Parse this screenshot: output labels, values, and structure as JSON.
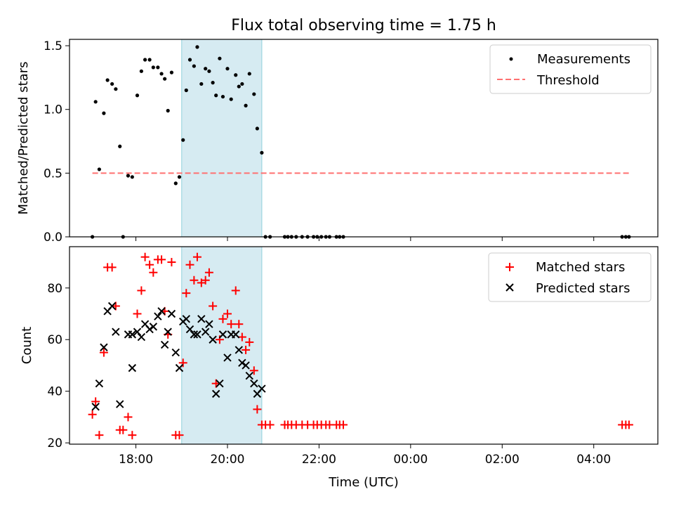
{
  "title": "Flux total observing time = 1.75 h",
  "chart_data": [
    {
      "type": "scatter",
      "panel": "top",
      "ylabel": "Matched/Predicted stars",
      "xlabel": "",
      "x_unit": "hours (UTC, continuing past midnight)",
      "xlim": [
        16.55,
        29.4
      ],
      "ylim": [
        0,
        1.55
      ],
      "yticks": [
        0.0,
        0.5,
        1.0,
        1.5
      ],
      "ytick_labels": [
        "0.0",
        "0.5",
        "1.0",
        "1.5"
      ],
      "grid": false,
      "legend_position": "top-right",
      "shaded_interval": [
        19.0,
        20.75
      ],
      "series": [
        {
          "name": "Measurements",
          "marker": "dot",
          "color": "#000000",
          "points": [
            [
              17.05,
              0.0
            ],
            [
              17.12,
              1.06
            ],
            [
              17.2,
              0.53
            ],
            [
              17.3,
              0.97
            ],
            [
              17.38,
              1.23
            ],
            [
              17.48,
              1.2
            ],
            [
              17.56,
              1.16
            ],
            [
              17.65,
              0.71
            ],
            [
              17.72,
              0.0
            ],
            [
              17.83,
              0.48
            ],
            [
              17.92,
              0.47
            ],
            [
              18.03,
              1.11
            ],
            [
              18.12,
              1.3
            ],
            [
              18.2,
              1.39
            ],
            [
              18.3,
              1.39
            ],
            [
              18.38,
              1.33
            ],
            [
              18.48,
              1.33
            ],
            [
              18.56,
              1.28
            ],
            [
              18.63,
              1.24
            ],
            [
              18.7,
              0.99
            ],
            [
              18.78,
              1.29
            ],
            [
              18.87,
              0.42
            ],
            [
              18.95,
              0.47
            ],
            [
              19.03,
              0.76
            ],
            [
              19.1,
              1.15
            ],
            [
              19.18,
              1.39
            ],
            [
              19.27,
              1.34
            ],
            [
              19.34,
              1.49
            ],
            [
              19.43,
              1.2
            ],
            [
              19.52,
              1.32
            ],
            [
              19.6,
              1.3
            ],
            [
              19.68,
              1.21
            ],
            [
              19.75,
              1.11
            ],
            [
              19.83,
              1.4
            ],
            [
              19.9,
              1.1
            ],
            [
              20.0,
              1.32
            ],
            [
              20.08,
              1.08
            ],
            [
              20.18,
              1.27
            ],
            [
              20.25,
              1.18
            ],
            [
              20.32,
              1.2
            ],
            [
              20.4,
              1.03
            ],
            [
              20.48,
              1.28
            ],
            [
              20.58,
              1.12
            ],
            [
              20.65,
              0.85
            ],
            [
              20.75,
              0.66
            ],
            [
              20.83,
              0.0
            ],
            [
              20.93,
              0.0
            ],
            [
              21.25,
              0.0
            ],
            [
              21.32,
              0.0
            ],
            [
              21.4,
              0.0
            ],
            [
              21.5,
              0.0
            ],
            [
              21.63,
              0.0
            ],
            [
              21.75,
              0.0
            ],
            [
              21.88,
              0.0
            ],
            [
              21.96,
              0.0
            ],
            [
              22.05,
              0.0
            ],
            [
              22.15,
              0.0
            ],
            [
              22.23,
              0.0
            ],
            [
              22.38,
              0.0
            ],
            [
              22.45,
              0.0
            ],
            [
              22.53,
              0.0
            ],
            [
              28.62,
              0.0
            ],
            [
              28.7,
              0.0
            ],
            [
              28.77,
              0.0
            ]
          ]
        },
        {
          "name": "Threshold",
          "marker": "dashed-line",
          "color": "#ff7070",
          "points": [
            [
              17.05,
              0.5
            ],
            [
              28.77,
              0.5
            ]
          ]
        }
      ]
    },
    {
      "type": "scatter",
      "panel": "bottom",
      "ylabel": "Count",
      "xlabel": "Time (UTC)",
      "x_unit": "hours (UTC, continuing past midnight)",
      "xlim": [
        16.55,
        29.4
      ],
      "ylim": [
        19.5,
        96
      ],
      "yticks": [
        20,
        40,
        60,
        80
      ],
      "ytick_labels": [
        "20",
        "40",
        "60",
        "80"
      ],
      "xticks": [
        18,
        20,
        22,
        24,
        26,
        28
      ],
      "xtick_labels": [
        "18:00",
        "20:00",
        "22:00",
        "00:00",
        "02:00",
        "04:00"
      ],
      "grid": false,
      "legend_position": "top-right",
      "shaded_interval": [
        19.0,
        20.75
      ],
      "series": [
        {
          "name": "Matched stars",
          "marker": "plus",
          "color": "#ff0000",
          "points": [
            [
              17.05,
              31
            ],
            [
              17.12,
              36
            ],
            [
              17.2,
              23
            ],
            [
              17.3,
              55
            ],
            [
              17.38,
              88
            ],
            [
              17.48,
              88
            ],
            [
              17.56,
              73
            ],
            [
              17.65,
              25
            ],
            [
              17.72,
              25
            ],
            [
              17.83,
              30
            ],
            [
              17.92,
              23
            ],
            [
              18.03,
              70
            ],
            [
              18.12,
              79
            ],
            [
              18.2,
              92
            ],
            [
              18.3,
              89
            ],
            [
              18.38,
              86
            ],
            [
              18.48,
              91
            ],
            [
              18.56,
              91
            ],
            [
              18.63,
              71
            ],
            [
              18.7,
              62
            ],
            [
              18.78,
              90
            ],
            [
              18.87,
              23
            ],
            [
              18.95,
              23
            ],
            [
              19.03,
              51
            ],
            [
              19.1,
              78
            ],
            [
              19.18,
              89
            ],
            [
              19.27,
              83
            ],
            [
              19.34,
              92
            ],
            [
              19.43,
              82
            ],
            [
              19.52,
              83
            ],
            [
              19.6,
              86
            ],
            [
              19.68,
              73
            ],
            [
              19.75,
              43
            ],
            [
              19.83,
              60
            ],
            [
              19.9,
              68
            ],
            [
              20.0,
              70
            ],
            [
              20.08,
              66
            ],
            [
              20.18,
              79
            ],
            [
              20.25,
              66
            ],
            [
              20.32,
              61
            ],
            [
              20.4,
              56
            ],
            [
              20.48,
              59
            ],
            [
              20.58,
              48
            ],
            [
              20.65,
              33
            ],
            [
              20.75,
              27
            ],
            [
              20.83,
              27
            ],
            [
              20.93,
              27
            ],
            [
              21.25,
              27
            ],
            [
              21.32,
              27
            ],
            [
              21.4,
              27
            ],
            [
              21.5,
              27
            ],
            [
              21.63,
              27
            ],
            [
              21.75,
              27
            ],
            [
              21.88,
              27
            ],
            [
              21.96,
              27
            ],
            [
              22.05,
              27
            ],
            [
              22.15,
              27
            ],
            [
              22.23,
              27
            ],
            [
              22.38,
              27
            ],
            [
              22.45,
              27
            ],
            [
              22.53,
              27
            ],
            [
              28.62,
              27
            ],
            [
              28.7,
              27
            ],
            [
              28.77,
              27
            ]
          ]
        },
        {
          "name": "Predicted stars",
          "marker": "x",
          "color": "#000000",
          "points": [
            [
              17.12,
              34
            ],
            [
              17.2,
              43
            ],
            [
              17.3,
              57
            ],
            [
              17.38,
              71
            ],
            [
              17.48,
              73
            ],
            [
              17.56,
              63
            ],
            [
              17.65,
              35
            ],
            [
              17.92,
              62
            ],
            [
              17.83,
              62
            ],
            [
              17.92,
              49
            ],
            [
              18.03,
              63
            ],
            [
              18.12,
              61
            ],
            [
              18.2,
              66
            ],
            [
              18.3,
              64
            ],
            [
              18.38,
              65
            ],
            [
              18.48,
              69
            ],
            [
              18.56,
              71
            ],
            [
              18.63,
              58
            ],
            [
              18.7,
              63
            ],
            [
              18.78,
              70
            ],
            [
              18.87,
              55
            ],
            [
              18.95,
              49
            ],
            [
              19.03,
              67
            ],
            [
              19.1,
              68
            ],
            [
              19.18,
              64
            ],
            [
              19.27,
              62
            ],
            [
              19.34,
              62
            ],
            [
              19.43,
              68
            ],
            [
              19.52,
              63
            ],
            [
              19.6,
              66
            ],
            [
              19.68,
              60
            ],
            [
              19.75,
              39
            ],
            [
              19.83,
              43
            ],
            [
              19.9,
              62
            ],
            [
              20.0,
              53
            ],
            [
              20.08,
              62
            ],
            [
              20.18,
              62
            ],
            [
              20.25,
              56
            ],
            [
              20.32,
              51
            ],
            [
              20.4,
              50
            ],
            [
              20.48,
              46
            ],
            [
              20.58,
              43
            ],
            [
              20.65,
              39
            ],
            [
              20.75,
              41
            ]
          ]
        }
      ]
    }
  ]
}
